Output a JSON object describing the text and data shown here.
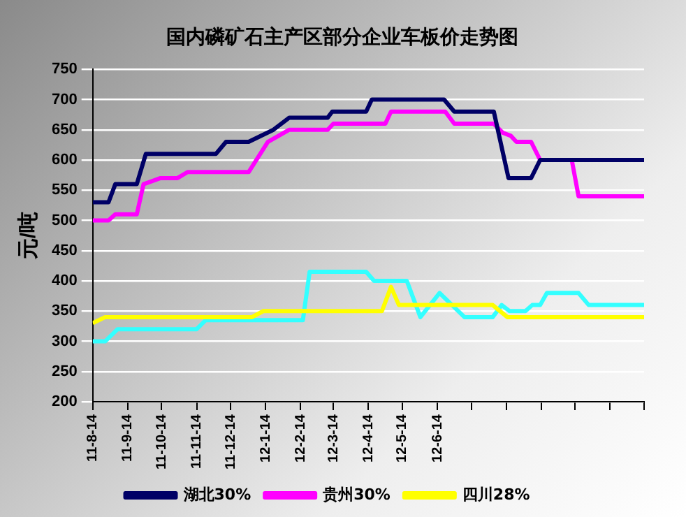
{
  "chart_data": {
    "type": "line",
    "title": "国内磷矿石主产区部分企业车板价走势图",
    "ylabel": "元/吨",
    "xlim": [
      "2011-08-14",
      "2012-12-14"
    ],
    "xticks": [
      {
        "value": "2011-08-14",
        "label": "11-8-14"
      },
      {
        "value": "2011-09-14",
        "label": "11-9-14"
      },
      {
        "value": "2011-10-14",
        "label": "11-10-14"
      },
      {
        "value": "2011-11-14",
        "label": "11-11-14"
      },
      {
        "value": "2011-12-14",
        "label": "11-12-14"
      },
      {
        "value": "2012-01-14",
        "label": "12-1-14"
      },
      {
        "value": "2012-02-14",
        "label": "12-2-14"
      },
      {
        "value": "2012-03-14",
        "label": "12-3-14"
      },
      {
        "value": "2012-04-14",
        "label": "12-4-14"
      },
      {
        "value": "2012-05-14",
        "label": "12-5-14"
      },
      {
        "value": "2012-06-14",
        "label": "12-6-14"
      },
      {
        "value": "2012-07-14",
        "label": null
      },
      {
        "value": "2012-08-14",
        "label": null
      },
      {
        "value": "2012-09-14",
        "label": null
      },
      {
        "value": "2012-10-14",
        "label": null
      },
      {
        "value": "2012-11-14",
        "label": null
      },
      {
        "value": "2012-12-14",
        "label": null
      }
    ],
    "ylim": [
      200,
      750
    ],
    "yticks": [
      200,
      250,
      300,
      350,
      400,
      450,
      500,
      550,
      600,
      650,
      700,
      750
    ],
    "grid": "y",
    "legend": "bottom",
    "marker": "none",
    "line_style": "solid",
    "series": [
      {
        "name": "湖北30%",
        "color": "#000066",
        "x": [
          "2011-08-14",
          "2011-08-28",
          "2011-09-03",
          "2011-09-22",
          "2011-09-30",
          "2011-12-01",
          "2011-12-10",
          "2011-12-30",
          "2012-01-21",
          "2012-02-04",
          "2012-03-09",
          "2012-03-13",
          "2012-04-12",
          "2012-04-17",
          "2012-06-20",
          "2012-06-29",
          "2012-08-03",
          "2012-08-16",
          "2012-09-05",
          "2012-09-13",
          "2012-12-14"
        ],
        "values": [
          530,
          530,
          560,
          560,
          610,
          610,
          630,
          630,
          650,
          670,
          670,
          680,
          680,
          700,
          700,
          680,
          680,
          570,
          570,
          600,
          600
        ]
      },
      {
        "name": "贵州30%",
        "color": "#ff00ff",
        "x": [
          "2011-08-14",
          "2011-08-28",
          "2011-09-03",
          "2011-09-22",
          "2011-09-28",
          "2011-10-13",
          "2011-10-28",
          "2011-11-06",
          "2011-12-30",
          "2012-01-16",
          "2012-02-04",
          "2012-03-09",
          "2012-03-14",
          "2012-04-29",
          "2012-05-04",
          "2012-06-21",
          "2012-06-29",
          "2012-08-03",
          "2012-08-11",
          "2012-08-18",
          "2012-08-23",
          "2012-09-05",
          "2012-09-13",
          "2012-10-11",
          "2012-10-17",
          "2012-12-14"
        ],
        "values": [
          500,
          500,
          510,
          510,
          560,
          570,
          570,
          580,
          580,
          630,
          650,
          650,
          660,
          660,
          680,
          680,
          660,
          660,
          645,
          640,
          630,
          630,
          600,
          600,
          540,
          540
        ]
      },
      {
        "name": "四川28%",
        "color": "#ffff00",
        "x": [
          "2011-08-14",
          "2011-08-25",
          "2012-01-02",
          "2012-01-12",
          "2012-04-26",
          "2012-05-04",
          "2012-05-11",
          "2012-08-02",
          "2012-08-15",
          "2012-12-14"
        ],
        "values": [
          330,
          340,
          340,
          350,
          350,
          390,
          360,
          360,
          340,
          340
        ]
      },
      {
        "color": "#33ffff",
        "x": [
          "2011-08-14",
          "2011-08-25",
          "2011-09-05",
          "2011-11-14",
          "2011-11-22",
          "2012-02-16",
          "2012-02-22",
          "2012-04-12",
          "2012-04-19",
          "2012-05-18",
          "2012-05-30",
          "2012-06-16",
          "2012-07-08",
          "2012-08-02",
          "2012-08-10",
          "2012-08-17",
          "2012-08-31",
          "2012-09-06",
          "2012-09-13",
          "2012-09-19",
          "2012-10-17",
          "2012-10-26",
          "2012-12-14"
        ],
        "values": [
          300,
          300,
          320,
          320,
          335,
          335,
          415,
          415,
          400,
          400,
          340,
          380,
          340,
          340,
          360,
          350,
          350,
          360,
          360,
          380,
          380,
          360,
          360
        ]
      }
    ]
  }
}
